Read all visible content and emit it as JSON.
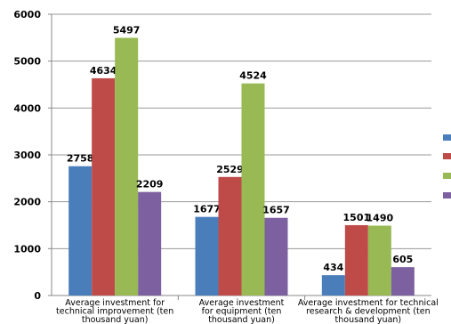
{
  "chart_data": {
    "type": "bar",
    "categories": [
      "Average investment for technical improvement (ten thousand yuan)",
      "Average investment for equipment (ten thousand yuan)",
      "Average investment for technical research & development (ten thousand yuan)"
    ],
    "category_lines": [
      [
        "Average investment for",
        "technical improvement (ten",
        "thousand yuan)"
      ],
      [
        "Average investment",
        "for equipment (ten",
        "thousand yuan)"
      ],
      [
        "Average investment for technical",
        "research & development (ten",
        "thousand yuan)"
      ]
    ],
    "series": [
      {
        "values": [
          2758,
          1677,
          434
        ],
        "color": "#4a7ebb"
      },
      {
        "values": [
          4634,
          2529,
          1501
        ],
        "color": "#be4b48"
      },
      {
        "values": [
          5497,
          4524,
          1490
        ],
        "color": "#98b954"
      },
      {
        "values": [
          2209,
          1657,
          605
        ],
        "color": "#7d60a0"
      }
    ],
    "ylim": [
      0,
      6000
    ],
    "yticks": [
      0,
      1000,
      2000,
      3000,
      4000,
      5000,
      6000
    ],
    "grid": true,
    "legend_position": "right (names cut off at image edge)",
    "title": "",
    "xlabel": "",
    "ylabel": ""
  }
}
